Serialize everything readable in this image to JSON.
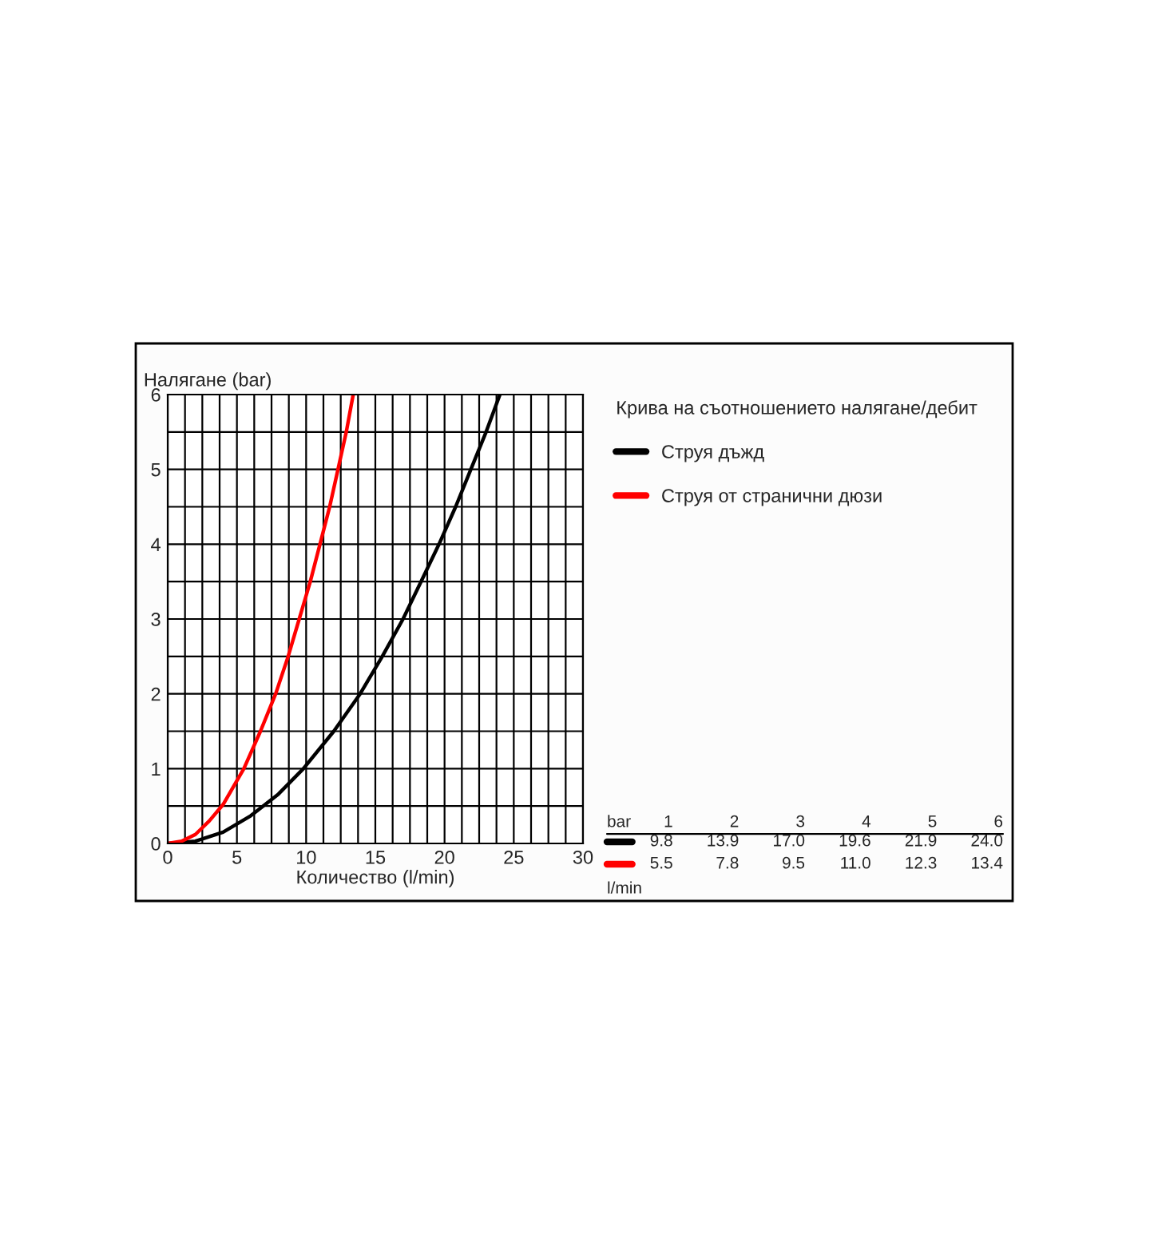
{
  "chart_data": {
    "type": "line",
    "ylabel": "Налягане (bar)",
    "xlabel": "Количество (l/min)",
    "legend_title": "Крива на съотношението налягане/дебит",
    "series": [
      {
        "name": "Струя дъжд",
        "color": "#000000",
        "x": [
          0,
          2,
          4,
          6,
          8,
          9.8,
          12,
          13.9,
          15.5,
          17.0,
          18.3,
          19.6,
          20.8,
          21.9,
          23,
          24.0
        ],
        "values": [
          0,
          0.03,
          0.15,
          0.37,
          0.66,
          1,
          1.5,
          2,
          2.5,
          3,
          3.5,
          4,
          4.5,
          5,
          5.5,
          6
        ]
      },
      {
        "name": "Струя от странични дюзи",
        "color": "#ff0000",
        "x": [
          0,
          1,
          2,
          3,
          4,
          5.5,
          6.7,
          7.8,
          8.7,
          9.5,
          10.3,
          11.0,
          11.7,
          12.3,
          12.9,
          13.4
        ],
        "values": [
          0,
          0.03,
          0.12,
          0.3,
          0.52,
          1,
          1.5,
          2,
          2.5,
          3,
          3.5,
          4,
          4.5,
          5,
          5.5,
          6
        ]
      }
    ],
    "xlim": [
      0,
      30
    ],
    "ylim": [
      0,
      6
    ],
    "xticks": [
      0,
      {
        "value": 1.25,
        "label": null
      },
      {
        "value": 2.5,
        "label": null
      },
      {
        "value": 3.75,
        "label": null
      },
      5,
      {
        "value": 6.25,
        "label": null
      },
      {
        "value": 7.5,
        "label": null
      },
      {
        "value": 8.75,
        "label": null
      },
      10,
      {
        "value": 11.25,
        "label": null
      },
      {
        "value": 12.5,
        "label": null
      },
      {
        "value": 13.75,
        "label": null
      },
      15,
      {
        "value": 16.25,
        "label": null
      },
      {
        "value": 17.5,
        "label": null
      },
      {
        "value": 18.75,
        "label": null
      },
      20,
      {
        "value": 21.25,
        "label": null
      },
      {
        "value": 22.5,
        "label": null
      },
      {
        "value": 23.75,
        "label": null
      },
      25,
      {
        "value": 26.25,
        "label": null
      },
      {
        "value": 27.5,
        "label": null
      },
      {
        "value": 28.75,
        "label": null
      },
      30
    ],
    "yticks": [
      0,
      {
        "value": 0.5,
        "label": null
      },
      1,
      {
        "value": 1.5,
        "label": null
      },
      2,
      {
        "value": 2.5,
        "label": null
      },
      3,
      {
        "value": 3.5,
        "label": null
      },
      4,
      {
        "value": 4.5,
        "label": null
      },
      5,
      {
        "value": 5.5,
        "label": null
      },
      6
    ],
    "grid": true,
    "legend": "right",
    "annotations": [
      "bar",
      "1",
      "2",
      "3",
      "4",
      "5",
      "6",
      "9.8",
      "13.9",
      "17.0",
      "19.6",
      "21.9",
      "24.0",
      "5.5",
      "7.8",
      "9.5",
      "11.0",
      "12.3",
      "13.4",
      "l/min"
    ]
  }
}
